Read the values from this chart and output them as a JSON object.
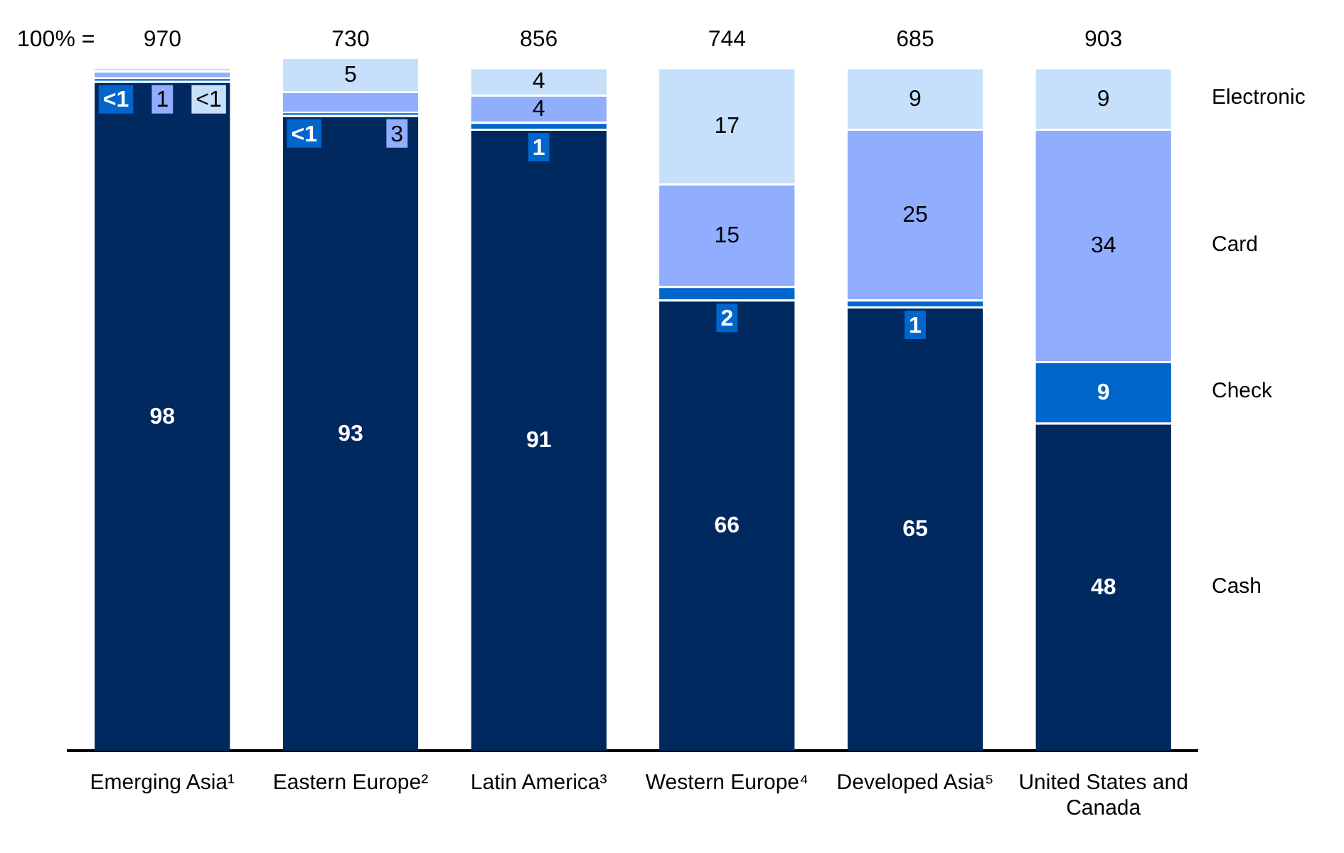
{
  "chart_data": {
    "type": "bar",
    "stacked": true,
    "categories": [
      "Emerging Asia¹",
      "Eastern Europe²",
      "Latin America³",
      "Western Europe⁴",
      "Developed Asia⁵",
      "United States and Canada"
    ],
    "series": [
      {
        "name": "Cash",
        "color": "#002960",
        "values": [
          98,
          93,
          91,
          66,
          65,
          48
        ],
        "value_labels": [
          "98",
          "93",
          "91",
          "66",
          "65",
          "48"
        ]
      },
      {
        "name": "Check",
        "color": "#0066cc",
        "values": [
          0.5,
          0.5,
          1,
          2,
          1,
          9
        ],
        "value_labels": [
          "<1",
          "<1",
          "1",
          "2",
          "1",
          "9"
        ]
      },
      {
        "name": "Card",
        "color": "#91aefe",
        "values": [
          1,
          3,
          4,
          15,
          25,
          34
        ],
        "value_labels": [
          "1",
          "3",
          "4",
          "15",
          "25",
          "34"
        ]
      },
      {
        "name": "Electronic",
        "color": "#c6e0fb",
        "values": [
          0.5,
          5,
          4,
          17,
          9,
          9
        ],
        "value_labels": [
          "<1",
          "5",
          "4",
          "17",
          "9",
          "9"
        ]
      }
    ],
    "annotations": [
      "100% =",
      "970",
      "730",
      "856",
      "744",
      "685",
      "903"
    ],
    "legend": false,
    "grid": false,
    "tick_labels": "x"
  }
}
